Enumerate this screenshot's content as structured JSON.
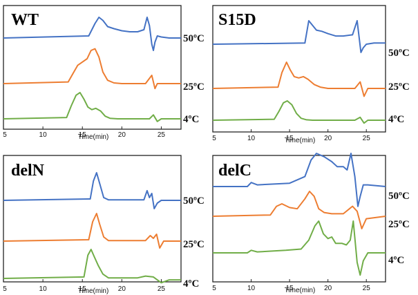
{
  "chart_data": [
    {
      "type": "line",
      "title": "WT",
      "xlabel": "Time(min)",
      "xlim": [
        5,
        27.5
      ],
      "xticks": [
        5,
        10,
        15,
        20,
        25
      ],
      "series": [
        {
          "name": "50ºC",
          "color": "#4472C4",
          "x": [
            5,
            15.8,
            16.6,
            17.1,
            17.6,
            18.2,
            19,
            20,
            21,
            22,
            22.8,
            23.2,
            23.5,
            23.8,
            24,
            24.2,
            24.5,
            25,
            26,
            27.5
          ],
          "y": [
            0,
            0.1,
            0.7,
            1.0,
            0.85,
            0.55,
            0.45,
            0.35,
            0.3,
            0.3,
            0.4,
            1.0,
            0.6,
            -0.3,
            -0.6,
            -0.2,
            0.1,
            0.05,
            0,
            0
          ]
        },
        {
          "name": "25ºC",
          "color": "#ED7D31",
          "x": [
            5,
            13.2,
            13.8,
            14.4,
            15.0,
            15.6,
            16.1,
            16.6,
            17.1,
            17.6,
            18.2,
            19,
            20,
            23,
            23.8,
            24.2,
            24.5,
            25,
            27.5
          ],
          "y": [
            0,
            0.05,
            0.3,
            0.55,
            0.65,
            0.75,
            1.0,
            1.05,
            0.8,
            0.35,
            0.1,
            0.02,
            0,
            0,
            0.25,
            -0.15,
            0,
            0,
            0
          ]
        },
        {
          "name": "4ºC",
          "color": "#70AD47",
          "x": [
            5,
            13.0,
            13.6,
            14.2,
            14.7,
            15.2,
            15.7,
            16.2,
            16.7,
            17.3,
            17.9,
            18.5,
            19.5,
            23.5,
            24,
            24.5,
            25,
            27.5
          ],
          "y": [
            0,
            0.05,
            0.5,
            0.9,
            1.0,
            0.75,
            0.45,
            0.35,
            0.4,
            0.3,
            0.1,
            0.02,
            0,
            0,
            0.15,
            -0.1,
            0,
            0
          ]
        }
      ]
    },
    {
      "type": "line",
      "title": "S15D",
      "xlabel": "Time(min)",
      "xlim": [
        5,
        27.5
      ],
      "xticks": [
        5,
        10,
        15,
        20,
        25
      ],
      "series": [
        {
          "name": "50ºC",
          "color": "#4472C4",
          "x": [
            5,
            17.0,
            17.5,
            18.0,
            18.5,
            19.2,
            20,
            21,
            22,
            23.2,
            23.8,
            24.3,
            24.6,
            25.0,
            26,
            27.5
          ],
          "y": [
            0,
            0.05,
            1.0,
            0.8,
            0.6,
            0.55,
            0.45,
            0.35,
            0.35,
            0.4,
            1.0,
            -0.35,
            -0.15,
            0,
            0.05,
            0.05
          ]
        },
        {
          "name": "25ºC",
          "color": "#ED7D31",
          "x": [
            5,
            13.5,
            14.0,
            14.6,
            15.1,
            15.6,
            16.2,
            16.8,
            17.4,
            18.2,
            19,
            20,
            23.5,
            24.2,
            24.7,
            25.2,
            27.5
          ],
          "y": [
            0,
            0.05,
            0.6,
            1.0,
            0.7,
            0.45,
            0.4,
            0.45,
            0.35,
            0.15,
            0.05,
            0,
            0,
            0.25,
            -0.3,
            0,
            0
          ]
        },
        {
          "name": "4ºC",
          "color": "#70AD47",
          "x": [
            5,
            13.0,
            13.6,
            14.2,
            14.7,
            15.3,
            15.9,
            16.5,
            17.2,
            18,
            23.5,
            24.2,
            24.7,
            25.2,
            27.5
          ],
          "y": [
            0,
            0.05,
            0.45,
            0.9,
            1.0,
            0.8,
            0.35,
            0.1,
            0.02,
            0,
            0,
            0.15,
            -0.15,
            0,
            0
          ]
        }
      ]
    },
    {
      "type": "line",
      "title": "delN",
      "xlabel": "Time(min)",
      "xlim": [
        5,
        27.5
      ],
      "xticks": [
        5,
        10,
        15,
        20,
        25
      ],
      "series": [
        {
          "name": "50ºC",
          "color": "#4472C4",
          "x": [
            5,
            16.0,
            16.4,
            16.8,
            17.2,
            17.7,
            18.3,
            22.8,
            23.2,
            23.5,
            23.8,
            24.1,
            24.5,
            25,
            27.5
          ],
          "y": [
            0,
            0.05,
            0.7,
            1.0,
            0.6,
            0.1,
            0.02,
            0.02,
            0.35,
            0.1,
            0.25,
            -0.3,
            -0.1,
            0,
            0
          ]
        },
        {
          "name": "25ºC",
          "color": "#ED7D31",
          "x": [
            5,
            15.8,
            16.3,
            16.8,
            17.2,
            17.7,
            18.3,
            23.0,
            23.6,
            24.0,
            24.4,
            24.8,
            25.3,
            27.5
          ],
          "y": [
            0,
            0.05,
            0.7,
            1.0,
            0.6,
            0.15,
            0.02,
            0.02,
            0.2,
            0.1,
            0.25,
            -0.25,
            0,
            0
          ]
        },
        {
          "name": "4ºC",
          "color": "#70AD47",
          "x": [
            5,
            15.2,
            15.7,
            16.1,
            16.5,
            17.0,
            17.6,
            18.3,
            22.0,
            23.0,
            24.0,
            25.0,
            26,
            27.5
          ],
          "y": [
            0,
            0.05,
            0.8,
            1.0,
            0.75,
            0.45,
            0.15,
            0.02,
            0.02,
            0.08,
            0.05,
            -0.15,
            -0.05,
            -0.05
          ]
        }
      ]
    },
    {
      "type": "line",
      "title": "delC",
      "xlabel": "Time(min)",
      "xlim": [
        5,
        27.5
      ],
      "xticks": [
        5,
        10,
        15,
        20,
        25
      ],
      "series": [
        {
          "name": "50ºC",
          "color": "#4472C4",
          "x": [
            5,
            9.5,
            10,
            10.8,
            15,
            17,
            17.8,
            18.5,
            19.5,
            20.5,
            21.2,
            22.0,
            22.5,
            23.0,
            23.5,
            23.9,
            24.2,
            24.6,
            25.2,
            27.5
          ],
          "y": [
            0,
            0,
            0.12,
            0.05,
            0.1,
            0.3,
            0.8,
            1.0,
            0.9,
            0.75,
            0.6,
            0.6,
            0.5,
            1.0,
            0.3,
            -0.6,
            -0.3,
            0.05,
            0.05,
            0
          ]
        },
        {
          "name": "25ºC",
          "color": "#ED7D31",
          "x": [
            5,
            12.5,
            13.3,
            14.0,
            15.0,
            16.0,
            17.0,
            17.6,
            18.2,
            18.8,
            19.5,
            20.5,
            22.0,
            23.2,
            23.8,
            24.4,
            25.0,
            27.5
          ],
          "y": [
            0,
            0.05,
            0.4,
            0.5,
            0.35,
            0.3,
            0.7,
            1.0,
            0.8,
            0.3,
            0.15,
            0.1,
            0.1,
            0.4,
            0.2,
            -0.5,
            -0.1,
            0
          ]
        },
        {
          "name": "4ºC",
          "color": "#70AD47",
          "x": [
            5,
            9.5,
            10.0,
            10.8,
            14.5,
            16.5,
            17.5,
            18.3,
            18.8,
            19.4,
            20.0,
            20.5,
            21.0,
            21.8,
            22.4,
            22.9,
            23.3,
            23.8,
            24.2,
            24.6,
            25.2,
            27.5
          ],
          "y": [
            0,
            0,
            0.08,
            0.03,
            0.08,
            0.12,
            0.4,
            0.85,
            1.0,
            0.6,
            0.45,
            0.5,
            0.3,
            0.3,
            0.25,
            0.4,
            1.0,
            -0.3,
            -0.7,
            -0.25,
            0,
            0
          ]
        }
      ]
    }
  ]
}
